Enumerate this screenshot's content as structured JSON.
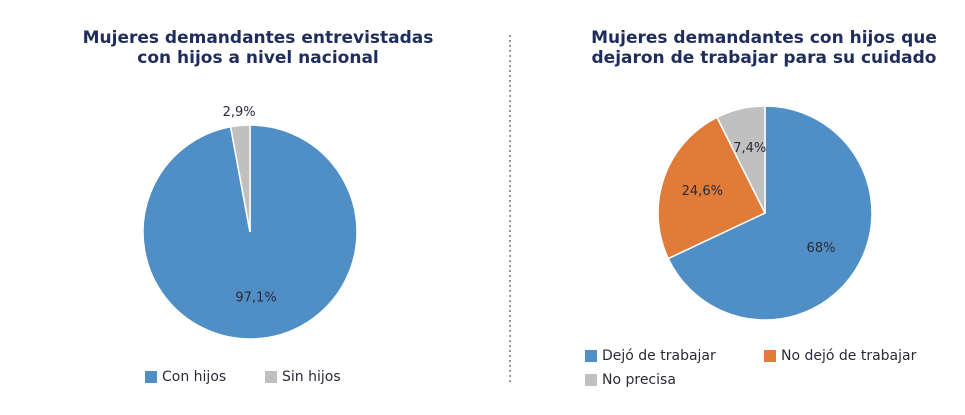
{
  "chart_data": [
    {
      "type": "pie",
      "title": [
        "Mujeres demandantes entrevistadas",
        "con hijos a nivel nacional"
      ],
      "categories": [
        "Con hijos",
        "Sin hijos"
      ],
      "values": [
        97.1,
        2.9
      ],
      "value_labels": [
        "97,1%",
        "2,9%"
      ],
      "colors": [
        "#4f8fc6",
        "#c0c0c0"
      ],
      "legend": "bottom"
    },
    {
      "type": "pie",
      "title": [
        "Mujeres demandantes con hijos que",
        "dejaron de trabajar para su cuidado"
      ],
      "categories": [
        "Dejó de trabajar",
        "No dejó de trabajar",
        "No precisa"
      ],
      "values": [
        68,
        24.6,
        7.4
      ],
      "value_labels": [
        "68%",
        "24,6%",
        "7,4%"
      ],
      "colors": [
        "#4f8fc6",
        "#e07b39",
        "#c0c0c0"
      ],
      "legend": "bottom"
    }
  ]
}
